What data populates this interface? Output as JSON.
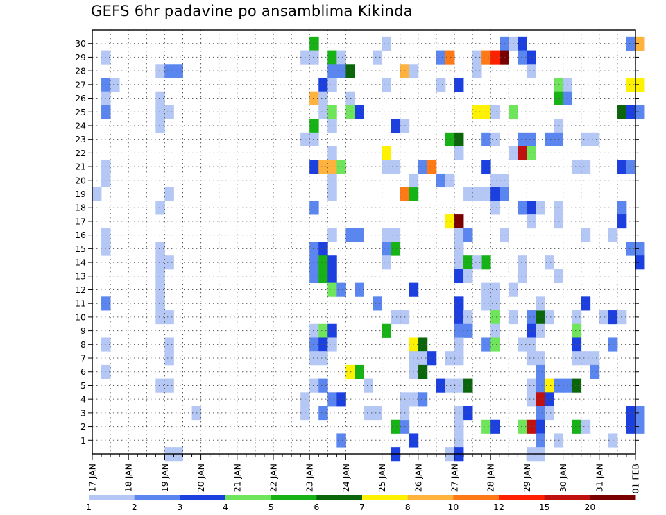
{
  "title": "GEFS 6hr padavine po ansamblima Kikinda",
  "chart_data": {
    "type": "heatmap",
    "title": "GEFS 6hr padavine po ansamblima Kikinda",
    "x_ticks": [
      "17 JAN",
      "18 JAN",
      "19 JAN",
      "20 JAN",
      "21 JAN",
      "22 JAN",
      "23 JAN",
      "24 JAN",
      "25 JAN",
      "26 JAN",
      "27 JAN",
      "28 JAN",
      "29 JAN",
      "30 JAN",
      "31 JAN",
      "01 FEB"
    ],
    "x_unit": "6-hour steps from 17 JAN 00 UTC (4 steps per day)",
    "xlim": [
      0,
      60
    ],
    "y_ticks": [
      1,
      2,
      3,
      4,
      5,
      6,
      7,
      8,
      9,
      10,
      11,
      12,
      13,
      14,
      15,
      16,
      17,
      18,
      19,
      20,
      21,
      22,
      23,
      24,
      25,
      26,
      27,
      28,
      29,
      30
    ],
    "ylabel": "",
    "xlabel": "",
    "grid": true,
    "legend_position": "bottom",
    "colorbar": {
      "labels": [
        "1",
        "2",
        "3",
        "4",
        "5",
        "6",
        "7",
        "8",
        "10",
        "12",
        "15",
        "20"
      ],
      "colors": [
        "#b4c7f5",
        "#5b86ef",
        "#1c3fe0",
        "#6fe55b",
        "#16b216",
        "#0b660b",
        "#fff200",
        "#ffb23c",
        "#ff7a16",
        "#ff2000",
        "#c01010",
        "#7a0000"
      ]
    },
    "cells": [
      [
        29,
        1,
        1
      ],
      [
        27,
        1,
        2
      ],
      [
        27,
        2,
        1
      ],
      [
        26,
        1,
        1
      ],
      [
        25,
        1,
        2
      ],
      [
        21,
        1,
        1
      ],
      [
        20,
        1,
        1
      ],
      [
        19,
        0,
        1
      ],
      [
        16,
        1,
        1
      ],
      [
        15,
        1,
        1
      ],
      [
        11,
        1,
        2
      ],
      [
        8,
        1,
        1
      ],
      [
        6,
        1,
        1
      ],
      [
        28,
        7,
        1
      ],
      [
        28,
        8,
        2
      ],
      [
        28,
        9,
        2
      ],
      [
        26,
        7,
        1
      ],
      [
        25,
        7,
        1
      ],
      [
        25,
        8,
        1
      ],
      [
        24,
        7,
        1
      ],
      [
        19,
        8,
        1
      ],
      [
        18,
        7,
        1
      ],
      [
        15,
        7,
        1
      ],
      [
        14,
        7,
        1
      ],
      [
        14,
        8,
        1
      ],
      [
        13,
        7,
        1
      ],
      [
        12,
        7,
        1
      ],
      [
        11,
        7,
        1
      ],
      [
        10,
        7,
        1
      ],
      [
        10,
        8,
        1
      ],
      [
        8,
        8,
        1
      ],
      [
        7,
        8,
        1
      ],
      [
        5,
        7,
        1
      ],
      [
        5,
        8,
        1
      ],
      [
        0,
        8,
        1
      ],
      [
        0,
        9,
        1
      ],
      [
        3,
        11,
        1
      ],
      [
        30,
        24,
        5
      ],
      [
        29,
        23,
        1
      ],
      [
        29,
        24,
        1
      ],
      [
        29,
        26,
        5
      ],
      [
        29,
        27,
        1
      ],
      [
        28,
        26,
        2
      ],
      [
        28,
        27,
        2
      ],
      [
        28,
        28,
        6
      ],
      [
        27,
        25,
        3
      ],
      [
        27,
        26,
        1
      ],
      [
        26,
        24,
        8
      ],
      [
        26,
        25,
        1
      ],
      [
        26,
        28,
        1
      ],
      [
        25,
        25,
        1
      ],
      [
        25,
        26,
        4
      ],
      [
        25,
        28,
        4
      ],
      [
        25,
        29,
        3
      ],
      [
        24,
        24,
        5
      ],
      [
        24,
        26,
        1
      ],
      [
        23,
        23,
        1
      ],
      [
        23,
        24,
        1
      ],
      [
        22,
        26,
        1
      ],
      [
        21,
        24,
        3
      ],
      [
        21,
        25,
        8
      ],
      [
        21,
        26,
        8
      ],
      [
        21,
        27,
        4
      ],
      [
        20,
        26,
        1
      ],
      [
        19,
        26,
        1
      ],
      [
        18,
        24,
        2
      ],
      [
        16,
        26,
        1
      ],
      [
        16,
        28,
        2
      ],
      [
        16,
        29,
        2
      ],
      [
        15,
        24,
        2
      ],
      [
        15,
        25,
        3
      ],
      [
        14,
        24,
        2
      ],
      [
        14,
        25,
        5
      ],
      [
        14,
        26,
        3
      ],
      [
        13,
        24,
        2
      ],
      [
        13,
        25,
        5
      ],
      [
        13,
        26,
        3
      ],
      [
        12,
        26,
        4
      ],
      [
        12,
        27,
        2
      ],
      [
        12,
        29,
        2
      ],
      [
        9,
        24,
        1
      ],
      [
        9,
        25,
        4
      ],
      [
        9,
        26,
        3
      ],
      [
        8,
        24,
        2
      ],
      [
        8,
        25,
        3
      ],
      [
        8,
        26,
        1
      ],
      [
        7,
        24,
        1
      ],
      [
        7,
        25,
        1
      ],
      [
        6,
        28,
        7
      ],
      [
        6,
        29,
        5
      ],
      [
        5,
        24,
        1
      ],
      [
        5,
        25,
        2
      ],
      [
        5,
        30,
        1
      ],
      [
        4,
        23,
        1
      ],
      [
        4,
        26,
        2
      ],
      [
        4,
        27,
        3
      ],
      [
        3,
        23,
        1
      ],
      [
        3,
        25,
        2
      ],
      [
        3,
        30,
        1
      ],
      [
        1,
        27,
        2
      ],
      [
        30,
        32,
        1
      ],
      [
        29,
        31,
        1
      ],
      [
        27,
        32,
        1
      ],
      [
        21,
        32,
        1
      ],
      [
        21,
        33,
        1
      ],
      [
        22,
        32,
        7
      ],
      [
        16,
        32,
        1
      ],
      [
        16,
        33,
        1
      ],
      [
        15,
        32,
        2
      ],
      [
        15,
        33,
        5
      ],
      [
        14,
        32,
        1
      ],
      [
        11,
        31,
        2
      ],
      [
        10,
        33,
        1
      ],
      [
        9,
        32,
        5
      ],
      [
        4,
        34,
        1
      ],
      [
        3,
        31,
        1
      ],
      [
        2,
        33,
        5
      ],
      [
        2,
        34,
        2
      ],
      [
        1,
        35,
        3
      ],
      [
        0,
        33,
        3
      ],
      [
        12,
        35,
        3
      ],
      [
        10,
        34,
        1
      ],
      [
        28,
        34,
        8
      ],
      [
        28,
        35,
        1
      ],
      [
        24,
        33,
        3
      ],
      [
        24,
        34,
        1
      ],
      [
        19,
        34,
        9
      ],
      [
        19,
        35,
        5
      ],
      [
        21,
        36,
        2
      ],
      [
        21,
        37,
        9
      ],
      [
        20,
        35,
        1
      ],
      [
        8,
        35,
        7
      ],
      [
        8,
        36,
        6
      ],
      [
        7,
        35,
        1
      ],
      [
        7,
        36,
        1
      ],
      [
        6,
        35,
        1
      ],
      [
        6,
        36,
        6
      ],
      [
        5,
        38,
        3
      ],
      [
        5,
        39,
        1
      ],
      [
        4,
        35,
        1
      ],
      [
        4,
        36,
        2
      ],
      [
        3,
        34,
        1
      ],
      [
        7,
        37,
        3
      ],
      [
        29,
        38,
        2
      ],
      [
        29,
        39,
        9
      ],
      [
        27,
        38,
        1
      ],
      [
        23,
        39,
        5
      ],
      [
        23,
        40,
        6
      ],
      [
        20,
        38,
        2
      ],
      [
        20,
        39,
        1
      ],
      [
        17,
        39,
        7
      ],
      [
        17,
        40,
        12
      ],
      [
        16,
        40,
        1
      ],
      [
        16,
        41,
        2
      ],
      [
        15,
        40,
        1
      ],
      [
        14,
        40,
        1
      ],
      [
        14,
        41,
        5
      ],
      [
        13,
        40,
        3
      ],
      [
        13,
        41,
        1
      ],
      [
        11,
        40,
        3
      ],
      [
        10,
        40,
        3
      ],
      [
        10,
        41,
        1
      ],
      [
        9,
        40,
        2
      ],
      [
        9,
        41,
        2
      ],
      [
        8,
        40,
        1
      ],
      [
        7,
        39,
        1
      ],
      [
        7,
        40,
        1
      ],
      [
        5,
        40,
        1
      ],
      [
        5,
        41,
        6
      ],
      [
        3,
        40,
        1
      ],
      [
        3,
        41,
        3
      ],
      [
        2,
        40,
        1
      ],
      [
        1,
        40,
        1
      ],
      [
        0,
        39,
        1
      ],
      [
        0,
        40,
        3
      ],
      [
        27,
        40,
        3
      ],
      [
        28,
        42,
        1
      ],
      [
        22,
        40,
        1
      ],
      [
        19,
        41,
        1
      ],
      [
        19,
        42,
        1
      ],
      [
        30,
        45,
        2
      ],
      [
        30,
        46,
        1
      ],
      [
        30,
        47,
        3
      ],
      [
        29,
        42,
        1
      ],
      [
        29,
        43,
        9
      ],
      [
        29,
        44,
        10
      ],
      [
        29,
        45,
        12
      ],
      [
        29,
        47,
        2
      ],
      [
        29,
        48,
        3
      ],
      [
        28,
        48,
        1
      ],
      [
        25,
        42,
        7
      ],
      [
        25,
        43,
        7
      ],
      [
        25,
        44,
        1
      ],
      [
        25,
        46,
        4
      ],
      [
        23,
        43,
        2
      ],
      [
        23,
        44,
        1
      ],
      [
        23,
        47,
        2
      ],
      [
        23,
        48,
        2
      ],
      [
        22,
        46,
        1
      ],
      [
        22,
        47,
        11
      ],
      [
        22,
        48,
        4
      ],
      [
        21,
        43,
        3
      ],
      [
        20,
        44,
        1
      ],
      [
        20,
        45,
        1
      ],
      [
        19,
        42,
        1
      ],
      [
        19,
        43,
        1
      ],
      [
        19,
        44,
        3
      ],
      [
        19,
        45,
        2
      ],
      [
        18,
        44,
        1
      ],
      [
        18,
        47,
        2
      ],
      [
        18,
        48,
        3
      ],
      [
        18,
        49,
        1
      ],
      [
        17,
        48,
        1
      ],
      [
        16,
        45,
        1
      ],
      [
        14,
        43,
        5
      ],
      [
        14,
        42,
        1
      ],
      [
        14,
        47,
        1
      ],
      [
        13,
        47,
        1
      ],
      [
        12,
        43,
        1
      ],
      [
        12,
        44,
        1
      ],
      [
        12,
        46,
        1
      ],
      [
        11,
        43,
        1
      ],
      [
        11,
        44,
        1
      ],
      [
        10,
        44,
        4
      ],
      [
        10,
        46,
        1
      ],
      [
        10,
        48,
        2
      ],
      [
        10,
        49,
        6
      ],
      [
        10,
        50,
        1
      ],
      [
        9,
        44,
        1
      ],
      [
        9,
        48,
        3
      ],
      [
        9,
        49,
        1
      ],
      [
        8,
        43,
        2
      ],
      [
        8,
        44,
        4
      ],
      [
        8,
        47,
        1
      ],
      [
        8,
        48,
        1
      ],
      [
        7,
        48,
        1
      ],
      [
        7,
        49,
        1
      ],
      [
        6,
        49,
        2
      ],
      [
        5,
        48,
        1
      ],
      [
        5,
        49,
        2
      ],
      [
        5,
        50,
        7
      ],
      [
        5,
        51,
        2
      ],
      [
        5,
        52,
        2
      ],
      [
        5,
        53,
        6
      ],
      [
        4,
        48,
        1
      ],
      [
        4,
        49,
        11
      ],
      [
        4,
        50,
        3
      ],
      [
        3,
        49,
        2
      ],
      [
        3,
        50,
        1
      ],
      [
        2,
        43,
        4
      ],
      [
        2,
        44,
        3
      ],
      [
        2,
        47,
        4
      ],
      [
        2,
        48,
        11
      ],
      [
        2,
        49,
        3
      ],
      [
        1,
        49,
        2
      ],
      [
        1,
        51,
        1
      ],
      [
        0,
        48,
        1
      ],
      [
        0,
        49,
        1
      ],
      [
        11,
        49,
        1
      ],
      [
        27,
        51,
        4
      ],
      [
        27,
        52,
        1
      ],
      [
        26,
        51,
        5
      ],
      [
        26,
        52,
        2
      ],
      [
        24,
        51,
        1
      ],
      [
        23,
        50,
        2
      ],
      [
        23,
        51,
        2
      ],
      [
        17,
        51,
        1
      ],
      [
        18,
        51,
        1
      ],
      [
        14,
        50,
        1
      ],
      [
        11,
        54,
        3
      ],
      [
        10,
        53,
        1
      ],
      [
        9,
        53,
        4
      ],
      [
        8,
        53,
        3
      ],
      [
        7,
        53,
        1
      ],
      [
        7,
        54,
        1
      ],
      [
        7,
        55,
        1
      ],
      [
        6,
        55,
        2
      ],
      [
        2,
        53,
        5
      ],
      [
        2,
        54,
        1
      ],
      [
        21,
        53,
        1
      ],
      [
        21,
        54,
        1
      ],
      [
        23,
        54,
        1
      ],
      [
        23,
        55,
        1
      ],
      [
        16,
        54,
        1
      ],
      [
        13,
        51,
        1
      ],
      [
        30,
        59,
        2
      ],
      [
        30,
        60,
        8
      ],
      [
        27,
        59,
        7
      ],
      [
        27,
        60,
        7
      ],
      [
        25,
        58,
        6
      ],
      [
        25,
        59,
        3
      ],
      [
        25,
        60,
        2
      ],
      [
        21,
        58,
        3
      ],
      [
        21,
        59,
        2
      ],
      [
        18,
        58,
        2
      ],
      [
        17,
        58,
        3
      ],
      [
        16,
        57,
        1
      ],
      [
        15,
        59,
        2
      ],
      [
        15,
        60,
        2
      ],
      [
        14,
        60,
        3
      ],
      [
        10,
        56,
        1
      ],
      [
        10,
        57,
        3
      ],
      [
        10,
        58,
        1
      ],
      [
        8,
        57,
        2
      ],
      [
        3,
        59,
        3
      ],
      [
        3,
        60,
        2
      ],
      [
        2,
        59,
        3
      ],
      [
        2,
        60,
        2
      ],
      [
        1,
        57,
        1
      ]
    ]
  }
}
